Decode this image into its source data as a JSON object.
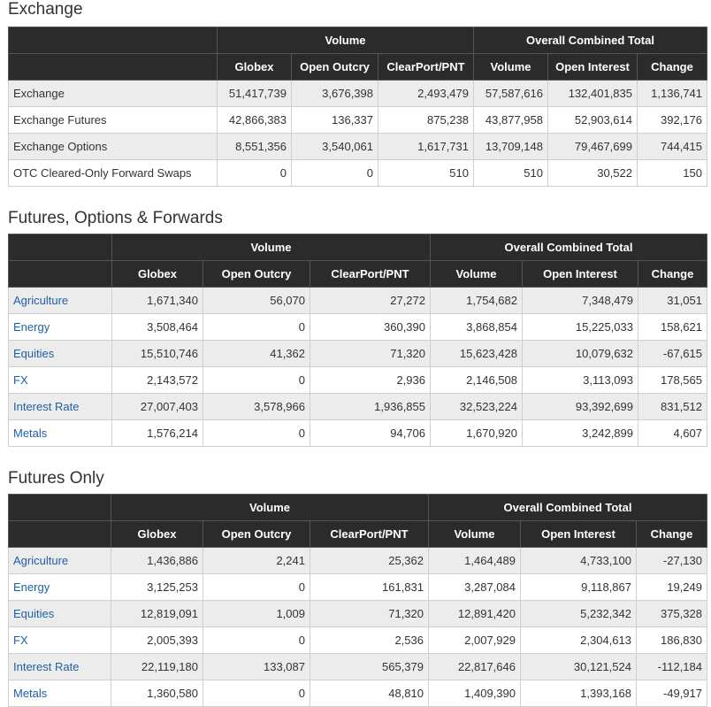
{
  "sections": [
    {
      "title": "Exchange",
      "group_headers": {
        "volume": "Volume",
        "overall": "Overall Combined Total"
      },
      "columns": [
        "Globex",
        "Open Outcry",
        "ClearPort/PNT",
        "Volume",
        "Open Interest",
        "Change"
      ],
      "rows": [
        {
          "label": "Exchange",
          "link": false,
          "cells": [
            "51,417,739",
            "3,676,398",
            "2,493,479",
            "57,587,616",
            "132,401,835",
            "1,136,741"
          ]
        },
        {
          "label": "Exchange Futures",
          "link": false,
          "cells": [
            "42,866,383",
            "136,337",
            "875,238",
            "43,877,958",
            "52,903,614",
            "392,176"
          ]
        },
        {
          "label": "Exchange Options",
          "link": false,
          "cells": [
            "8,551,356",
            "3,540,061",
            "1,617,731",
            "13,709,148",
            "79,467,699",
            "744,415"
          ]
        },
        {
          "label": "OTC Cleared-Only Forward Swaps",
          "link": false,
          "cells": [
            "0",
            "0",
            "510",
            "510",
            "30,522",
            "150"
          ]
        }
      ]
    },
    {
      "title": "Futures, Options & Forwards",
      "group_headers": {
        "volume": "Volume",
        "overall": "Overall Combined Total"
      },
      "columns": [
        "Globex",
        "Open Outcry",
        "ClearPort/PNT",
        "Volume",
        "Open Interest",
        "Change"
      ],
      "rows": [
        {
          "label": "Agriculture",
          "link": true,
          "cells": [
            "1,671,340",
            "56,070",
            "27,272",
            "1,754,682",
            "7,348,479",
            "31,051"
          ]
        },
        {
          "label": "Energy",
          "link": true,
          "cells": [
            "3,508,464",
            "0",
            "360,390",
            "3,868,854",
            "15,225,033",
            "158,621"
          ]
        },
        {
          "label": "Equities",
          "link": true,
          "cells": [
            "15,510,746",
            "41,362",
            "71,320",
            "15,623,428",
            "10,079,632",
            "-67,615"
          ]
        },
        {
          "label": "FX",
          "link": true,
          "cells": [
            "2,143,572",
            "0",
            "2,936",
            "2,146,508",
            "3,113,093",
            "178,565"
          ]
        },
        {
          "label": "Interest Rate",
          "link": true,
          "cells": [
            "27,007,403",
            "3,578,966",
            "1,936,855",
            "32,523,224",
            "93,392,699",
            "831,512"
          ]
        },
        {
          "label": "Metals",
          "link": true,
          "cells": [
            "1,576,214",
            "0",
            "94,706",
            "1,670,920",
            "3,242,899",
            "4,607"
          ]
        }
      ]
    },
    {
      "title": "Futures Only",
      "group_headers": {
        "volume": "Volume",
        "overall": "Overall Combined Total"
      },
      "columns": [
        "Globex",
        "Open Outcry",
        "ClearPort/PNT",
        "Volume",
        "Open Interest",
        "Change"
      ],
      "rows": [
        {
          "label": "Agriculture",
          "link": true,
          "cells": [
            "1,436,886",
            "2,241",
            "25,362",
            "1,464,489",
            "4,733,100",
            "-27,130"
          ]
        },
        {
          "label": "Energy",
          "link": true,
          "cells": [
            "3,125,253",
            "0",
            "161,831",
            "3,287,084",
            "9,118,867",
            "19,249"
          ]
        },
        {
          "label": "Equities",
          "link": true,
          "cells": [
            "12,819,091",
            "1,009",
            "71,320",
            "12,891,420",
            "5,232,342",
            "375,328"
          ]
        },
        {
          "label": "FX",
          "link": true,
          "cells": [
            "2,005,393",
            "0",
            "2,536",
            "2,007,929",
            "2,304,613",
            "186,830"
          ]
        },
        {
          "label": "Interest Rate",
          "link": true,
          "cells": [
            "22,119,180",
            "133,087",
            "565,379",
            "22,817,646",
            "30,121,524",
            "-112,184"
          ]
        },
        {
          "label": "Metals",
          "link": true,
          "cells": [
            "1,360,580",
            "0",
            "48,810",
            "1,409,390",
            "1,393,168",
            "-49,917"
          ]
        }
      ]
    }
  ]
}
